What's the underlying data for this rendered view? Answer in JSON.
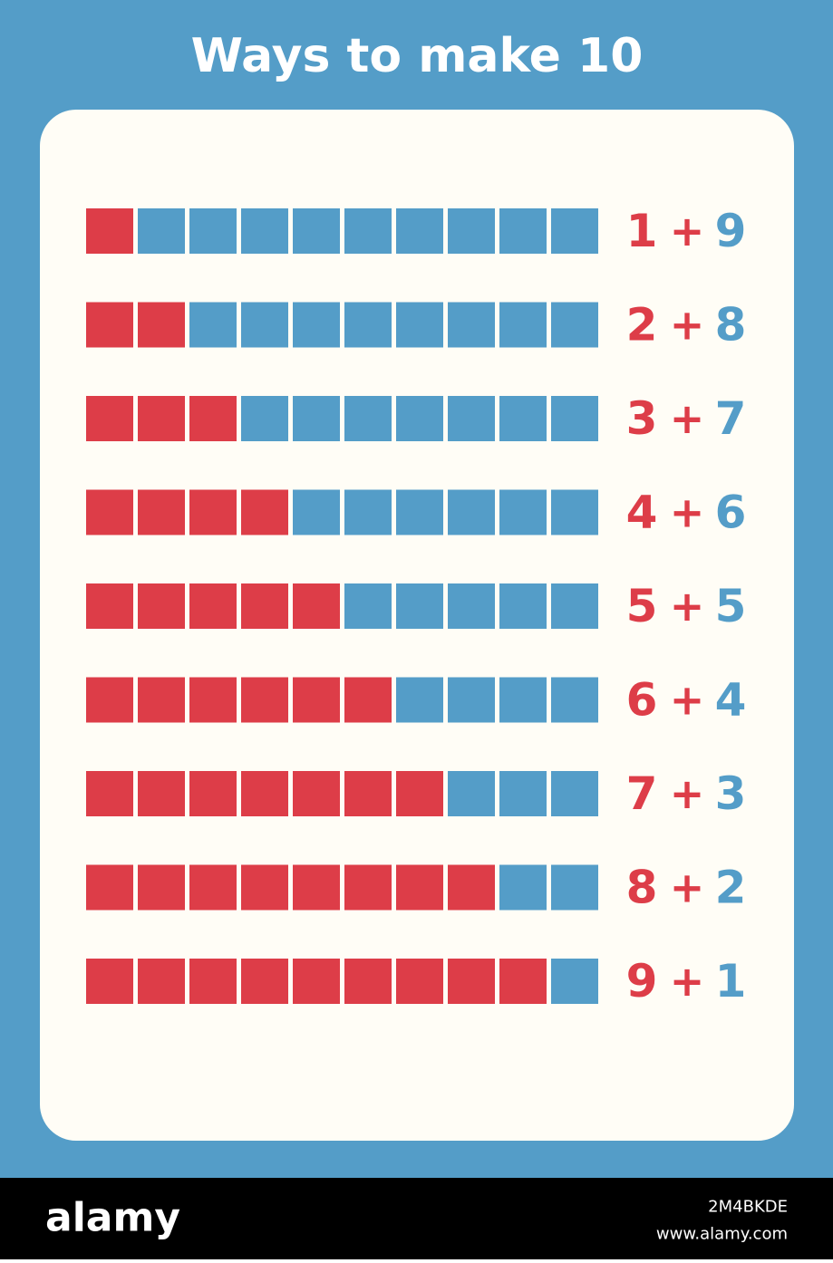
{
  "header": {
    "title": "Ways to make 10"
  },
  "rows": [
    {
      "left": 1,
      "op": "+",
      "right": 9
    },
    {
      "left": 2,
      "op": "+",
      "right": 8
    },
    {
      "left": 3,
      "op": "+",
      "right": 7
    },
    {
      "left": 4,
      "op": "+",
      "right": 6
    },
    {
      "left": 5,
      "op": "+",
      "right": 5
    },
    {
      "left": 6,
      "op": "+",
      "right": 4
    },
    {
      "left": 7,
      "op": "+",
      "right": 3
    },
    {
      "left": 8,
      "op": "+",
      "right": 2
    },
    {
      "left": 9,
      "op": "+",
      "right": 1
    }
  ],
  "colors": {
    "left": "#dd3d48",
    "right": "#549dc8"
  },
  "footer": {
    "brand": "alamy",
    "image_id": "2M4BKDE",
    "url": "www.alamy.com"
  }
}
